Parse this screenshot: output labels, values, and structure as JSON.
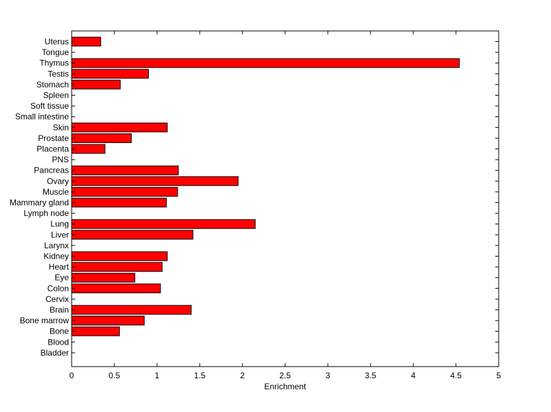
{
  "chart_data": {
    "type": "bar",
    "orientation": "horizontal",
    "title": "",
    "xlabel": "Enrichment",
    "ylabel": "",
    "xlim": [
      0,
      5
    ],
    "x_ticks": [
      "0",
      "0.5",
      "1",
      "1.5",
      "2",
      "2.5",
      "3",
      "3.5",
      "4",
      "4.5",
      "5"
    ],
    "grid": false,
    "bar_color": "#ff0000",
    "bar_edge_color": "#000000",
    "categories": [
      "Uterus",
      "Tongue",
      "Thymus",
      "Testis",
      "Stomach",
      "Spleen",
      "Soft tissue",
      "Small intestine",
      "Skin",
      "Prostate",
      "Placenta",
      "PNS",
      "Pancreas",
      "Ovary",
      "Muscle",
      "Mammary gland",
      "Lymph node",
      "Lung",
      "Liver",
      "Larynx",
      "Kidney",
      "Heart",
      "Eye",
      "Colon",
      "Cervix",
      "Brain",
      "Bone marrow",
      "Bone",
      "Blood",
      "Bladder"
    ],
    "values": [
      0.34,
      0,
      4.54,
      0.9,
      0.57,
      0,
      0,
      0,
      1.12,
      0.7,
      0.39,
      0,
      1.25,
      1.95,
      1.24,
      1.11,
      0,
      2.15,
      1.42,
      0,
      1.12,
      1.06,
      0.74,
      1.04,
      0,
      1.4,
      0.85,
      0.56,
      0,
      0
    ]
  }
}
